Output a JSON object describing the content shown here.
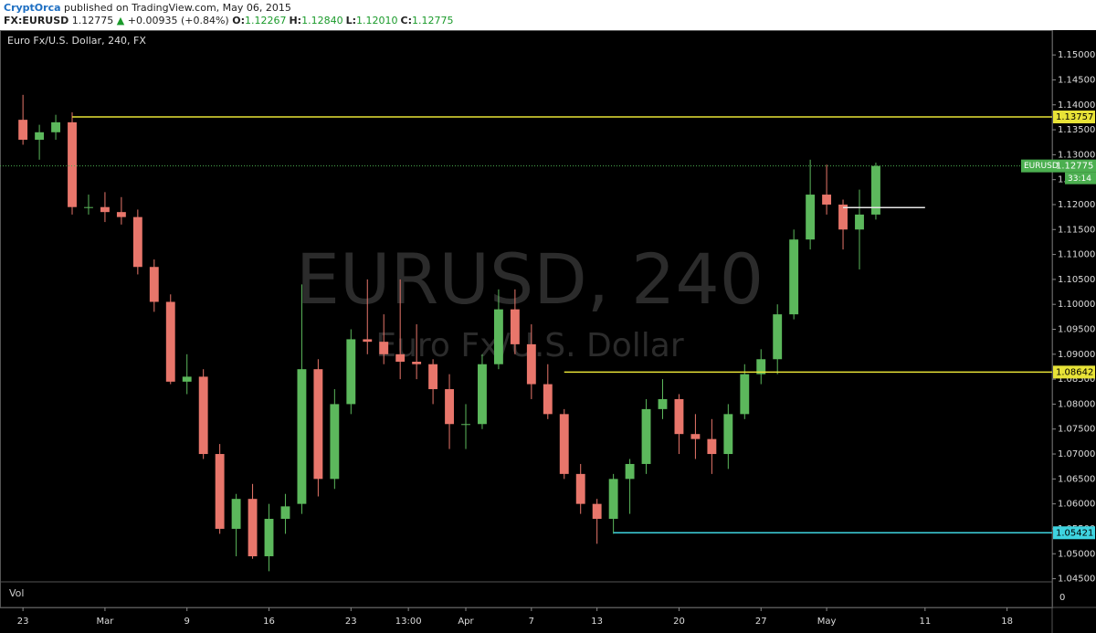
{
  "header": {
    "author": "CryptOrca",
    "published": "published on TradingView.com, May 06, 2015",
    "symbol": "FX:EURUSD",
    "price": "1.12775",
    "arrow": "▲",
    "change": "+0.00935 (+0.84%)",
    "ohlc": [
      {
        "label": "O:",
        "value": "1.12267"
      },
      {
        "label": "H:",
        "value": "1.12840"
      },
      {
        "label": "L:",
        "value": "1.12010"
      },
      {
        "label": "C:",
        "value": "1.12775"
      }
    ]
  },
  "chart_data": {
    "type": "candlestick",
    "title": "Euro Fx/U.S. Dollar, 240, FX",
    "watermark": {
      "symbol": "EURUSD, 240",
      "description": "Euro Fx/U.S. Dollar"
    },
    "up_color": "#5cb85c",
    "down_color": "#e8766b",
    "x": [
      0,
      1,
      2,
      3,
      4,
      5,
      6,
      7,
      8,
      9,
      10,
      11,
      12,
      13,
      14,
      15,
      16,
      17,
      18,
      19,
      20,
      21,
      22,
      23,
      24,
      25,
      26,
      27,
      28,
      29,
      30,
      31,
      32,
      33,
      34,
      35,
      36,
      37,
      38,
      39,
      40,
      41,
      42,
      43,
      44,
      45,
      46,
      47,
      48,
      49,
      50,
      51,
      52
    ],
    "open": [
      1.137,
      1.133,
      1.1345,
      1.1365,
      1.1195,
      1.1195,
      1.1185,
      1.1175,
      1.1075,
      1.1005,
      1.0845,
      1.0855,
      1.07,
      1.055,
      1.061,
      1.0495,
      1.057,
      1.06,
      1.087,
      1.065,
      1.08,
      1.093,
      1.0925,
      1.09,
      1.0885,
      1.088,
      1.083,
      1.076,
      1.076,
      1.088,
      1.099,
      1.092,
      1.084,
      1.078,
      1.066,
      1.06,
      1.057,
      1.065,
      1.068,
      1.079,
      1.081,
      1.074,
      1.073,
      1.07,
      1.078,
      1.086,
      1.089,
      1.098,
      1.113,
      1.122,
      1.12,
      1.115,
      1.118
    ],
    "high": [
      1.142,
      1.136,
      1.138,
      1.1385,
      1.122,
      1.1225,
      1.1215,
      1.119,
      1.109,
      1.102,
      1.09,
      1.087,
      1.072,
      1.062,
      1.064,
      1.06,
      1.062,
      1.104,
      1.089,
      1.083,
      1.095,
      1.105,
      1.098,
      1.105,
      1.096,
      1.089,
      1.086,
      1.08,
      1.09,
      1.103,
      1.103,
      1.096,
      1.088,
      1.079,
      1.068,
      1.061,
      1.066,
      1.069,
      1.081,
      1.085,
      1.082,
      1.078,
      1.077,
      1.08,
      1.088,
      1.091,
      1.1,
      1.115,
      1.129,
      1.128,
      1.121,
      1.123,
      1.1284
    ],
    "low": [
      1.132,
      1.129,
      1.133,
      1.118,
      1.118,
      1.1165,
      1.116,
      1.106,
      1.0985,
      1.084,
      1.082,
      1.069,
      1.054,
      1.0495,
      1.049,
      1.0465,
      1.054,
      1.058,
      1.0615,
      1.063,
      1.078,
      1.09,
      1.088,
      1.085,
      1.085,
      1.08,
      1.071,
      1.071,
      1.075,
      1.087,
      1.09,
      1.081,
      1.077,
      1.065,
      1.058,
      1.052,
      1.054,
      1.058,
      1.066,
      1.077,
      1.07,
      1.069,
      1.066,
      1.067,
      1.077,
      1.084,
      1.086,
      1.097,
      1.111,
      1.118,
      1.111,
      1.107,
      1.117
    ],
    "close": [
      1.133,
      1.1345,
      1.1365,
      1.1195,
      1.1195,
      1.1185,
      1.1175,
      1.1075,
      1.1005,
      1.0845,
      1.0855,
      1.07,
      1.055,
      1.061,
      1.0495,
      1.057,
      1.0595,
      1.087,
      1.065,
      1.08,
      1.093,
      1.0925,
      1.09,
      1.0885,
      1.088,
      1.083,
      1.076,
      1.076,
      1.088,
      1.099,
      1.092,
      1.084,
      1.078,
      1.066,
      1.06,
      1.057,
      1.065,
      1.068,
      1.079,
      1.081,
      1.074,
      1.073,
      1.07,
      1.078,
      1.086,
      1.089,
      1.098,
      1.113,
      1.122,
      1.12,
      1.115,
      1.118,
      1.12775
    ],
    "xlim": [
      -1.4,
      62.75
    ],
    "ylim": [
      1.04437,
      1.15497
    ],
    "xticks": [
      {
        "value": 0,
        "label": "23"
      },
      {
        "value": 5,
        "label": "Mar"
      },
      {
        "value": 10,
        "label": "9"
      },
      {
        "value": 15,
        "label": "16"
      },
      {
        "value": 20,
        "label": "23"
      },
      {
        "value": 23.5,
        "label": "13:00"
      },
      {
        "value": 27,
        "label": "Apr"
      },
      {
        "value": 31,
        "label": "7"
      },
      {
        "value": 35,
        "label": "13"
      },
      {
        "value": 40,
        "label": "20"
      },
      {
        "value": 45,
        "label": "27"
      },
      {
        "value": 49,
        "label": "May"
      },
      {
        "value": 55,
        "label": "11"
      },
      {
        "value": 60,
        "label": "18"
      }
    ],
    "yticks": [
      {
        "value": 1.045,
        "label": "1.04500"
      },
      {
        "value": 1.05,
        "label": "1.05000"
      },
      {
        "value": 1.055,
        "label": "1.05500"
      },
      {
        "value": 1.06,
        "label": "1.06000"
      },
      {
        "value": 1.065,
        "label": "1.06500"
      },
      {
        "value": 1.07,
        "label": "1.07000"
      },
      {
        "value": 1.075,
        "label": "1.07500"
      },
      {
        "value": 1.08,
        "label": "1.08000"
      },
      {
        "value": 1.085,
        "label": "1.08500"
      },
      {
        "value": 1.09,
        "label": "1.09000"
      },
      {
        "value": 1.095,
        "label": "1.09500"
      },
      {
        "value": 1.1,
        "label": "1.10000"
      },
      {
        "value": 1.105,
        "label": "1.10500"
      },
      {
        "value": 1.11,
        "label": "1.11000"
      },
      {
        "value": 1.115,
        "label": "1.11500"
      },
      {
        "value": 1.12,
        "label": "1.12000"
      },
      {
        "value": 1.125,
        "label": "1.12500"
      },
      {
        "value": 1.13,
        "label": "1.13000"
      },
      {
        "value": 1.135,
        "label": "1.13500"
      },
      {
        "value": 1.14,
        "label": "1.14000"
      },
      {
        "value": 1.145,
        "label": "1.14500"
      },
      {
        "value": 1.15,
        "label": "1.15000"
      }
    ],
    "levels": [
      {
        "value": 1.13757,
        "start": 3,
        "color": "#e8e337"
      },
      {
        "value": 1.08642,
        "start": 33,
        "color": "#e8e337"
      },
      {
        "value": 1.05421,
        "start": 36,
        "color": "#3ed3e0"
      }
    ],
    "drawing": {
      "value": 1.1194,
      "start": 50,
      "end": 55,
      "color": "#e6e6e6"
    },
    "price_line": {
      "name": "EURUSD",
      "value": 1.12775,
      "countdown": "33:14",
      "color": "#4caf50"
    },
    "volume": {
      "label": "Vol",
      "yticks": [
        0
      ]
    }
  }
}
